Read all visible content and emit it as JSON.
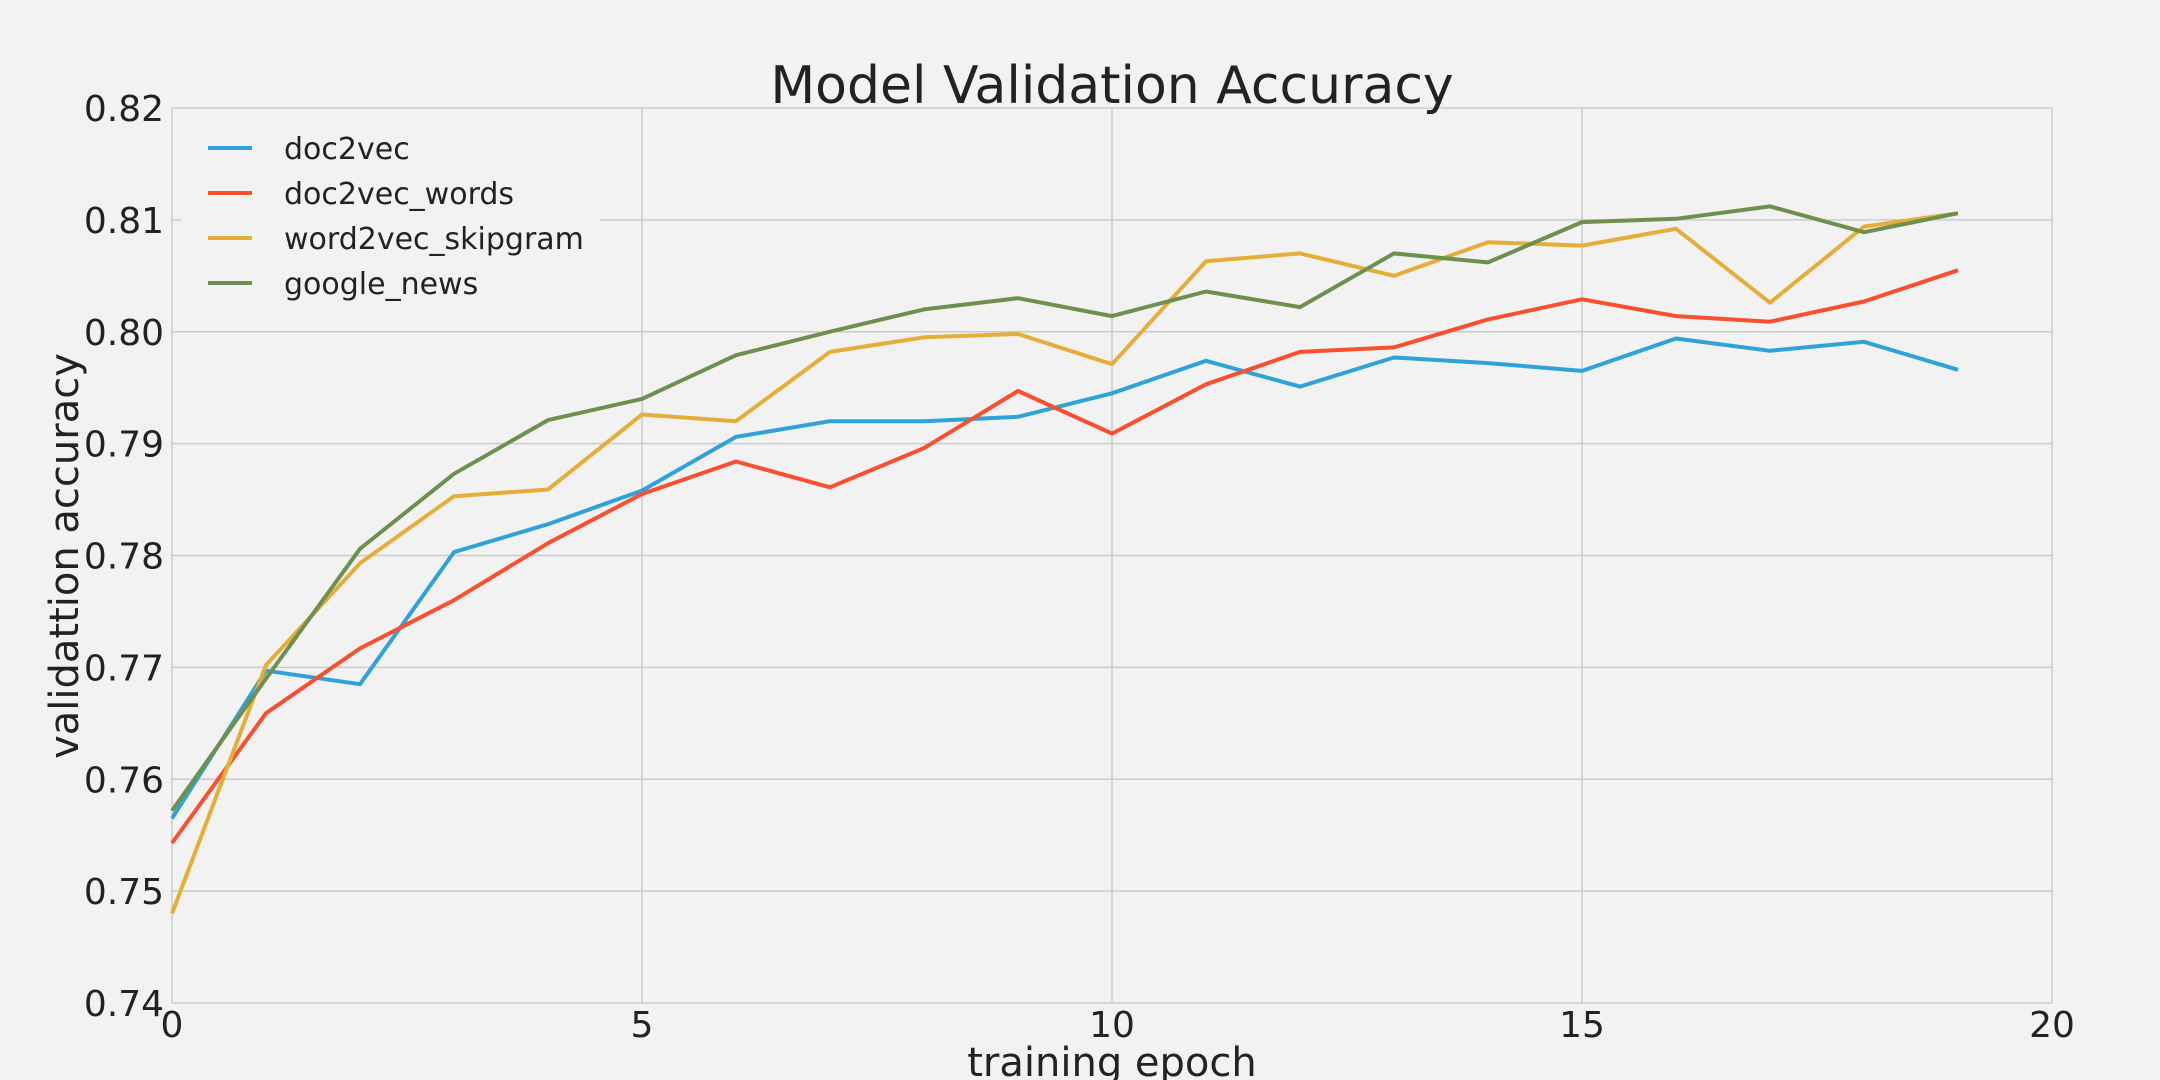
{
  "chart_data": {
    "type": "line",
    "title": "Model Validation Accuracy",
    "xlabel": "training epoch",
    "ylabel": "validattion accuracy",
    "xlim": [
      0,
      20
    ],
    "ylim": [
      0.74,
      0.82
    ],
    "xticks": [
      0,
      5,
      10,
      15,
      20
    ],
    "xtick_labels": [
      "0",
      "5",
      "10",
      "15",
      "20"
    ],
    "yticks": [
      0.74,
      0.75,
      0.76,
      0.77,
      0.78,
      0.79,
      0.8,
      0.81,
      0.82
    ],
    "ytick_labels": [
      "0.74",
      "0.75",
      "0.76",
      "0.77",
      "0.78",
      "0.79",
      "0.80",
      "0.81",
      "0.82"
    ],
    "grid": true,
    "legend_position": "top-left",
    "x": [
      0,
      1,
      2,
      3,
      4,
      5,
      6,
      7,
      8,
      9,
      10,
      11,
      12,
      13,
      14,
      15,
      16,
      17,
      18,
      19
    ],
    "series": [
      {
        "name": "doc2vec",
        "color": "#30a2da",
        "values": [
          0.7565,
          0.7697,
          0.7685,
          0.7803,
          0.7828,
          0.7858,
          0.7906,
          0.792,
          0.792,
          0.7924,
          0.7945,
          0.7974,
          0.7951,
          0.7977,
          0.7972,
          0.7965,
          0.7994,
          0.7983,
          0.7991,
          0.7966
        ]
      },
      {
        "name": "doc2vec_words",
        "color": "#fc4f30",
        "values": [
          0.7543,
          0.7659,
          0.7717,
          0.776,
          0.7811,
          0.7855,
          0.7884,
          0.7861,
          0.7896,
          0.7947,
          0.7909,
          0.7953,
          0.7982,
          0.7986,
          0.8011,
          0.8029,
          0.8014,
          0.8009,
          0.8027,
          0.8055
        ]
      },
      {
        "name": "word2vec_skipgram",
        "color": "#e5ae38",
        "values": [
          0.748,
          0.7702,
          0.7793,
          0.7853,
          0.7859,
          0.7926,
          0.792,
          0.7982,
          0.7995,
          0.7998,
          0.7971,
          0.8063,
          0.807,
          0.805,
          0.808,
          0.8077,
          0.8092,
          0.8026,
          0.8094,
          0.8106
        ]
      },
      {
        "name": "google_news",
        "color": "#6d904f",
        "values": [
          0.7572,
          0.769,
          0.7806,
          0.7873,
          0.7921,
          0.794,
          0.7979,
          0.8,
          0.802,
          0.803,
          0.8014,
          0.8036,
          0.8022,
          0.807,
          0.8062,
          0.8098,
          0.8101,
          0.8112,
          0.8089,
          0.8106
        ]
      }
    ]
  }
}
